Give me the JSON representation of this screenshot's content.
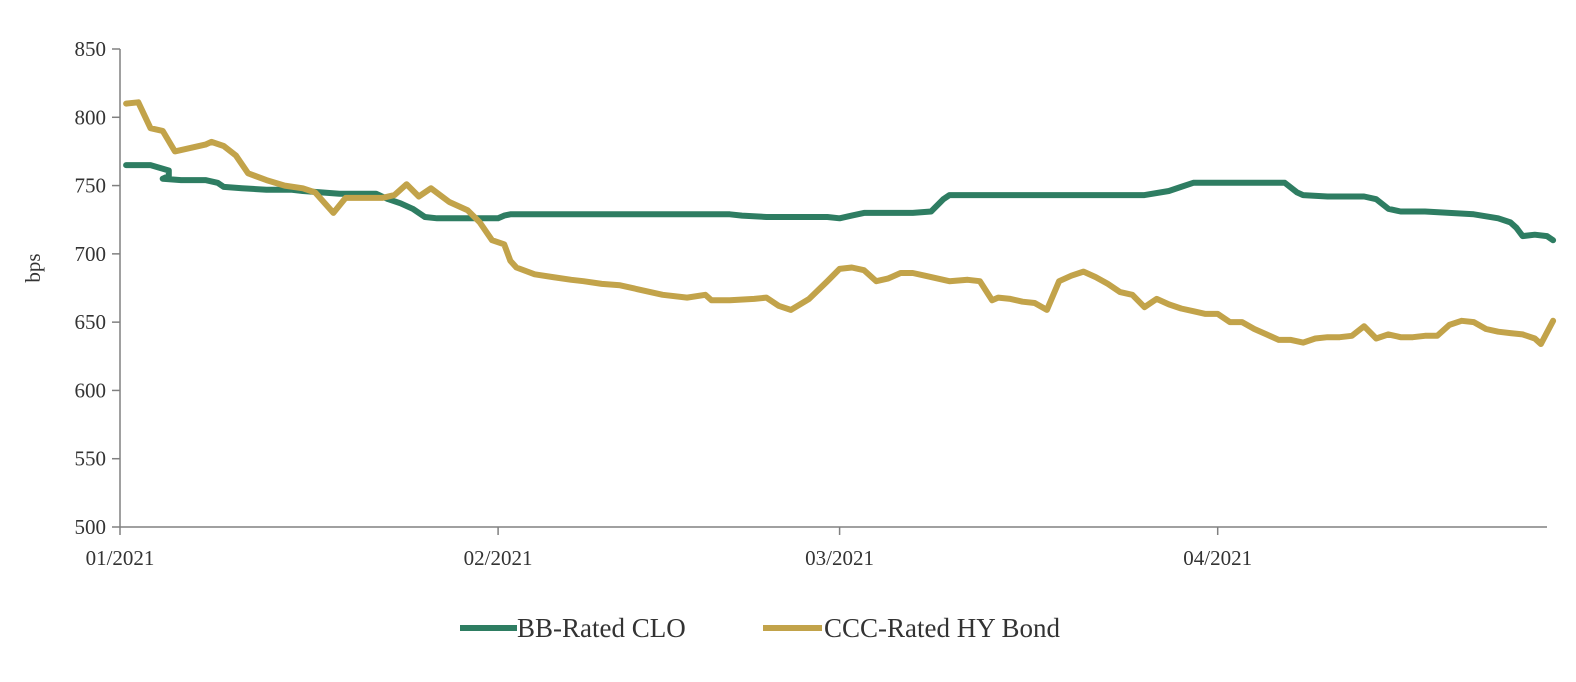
{
  "chart_data": {
    "type": "line",
    "xlabel": "",
    "ylabel": "bps",
    "ylim": [
      500,
      850
    ],
    "y_ticks": [
      "500",
      "550",
      "600",
      "650",
      "700",
      "750",
      "800",
      "850"
    ],
    "x_tick_labels": [
      "01/2021",
      "02/2021",
      "03/2021",
      "04/2021"
    ],
    "x_ticks_day": [
      0,
      31,
      59,
      90
    ],
    "x_range_day": [
      0,
      117
    ],
    "grid": false,
    "legend_position": "bottom-center",
    "series": [
      {
        "name": "BB-Rated CLO",
        "color": "#2E7D62",
        "points": [
          [
            0.5,
            765
          ],
          [
            2.5,
            765
          ],
          [
            4,
            761
          ],
          [
            4,
            757
          ],
          [
            3.5,
            755
          ],
          [
            5,
            754
          ],
          [
            7,
            754
          ],
          [
            8,
            752
          ],
          [
            8.5,
            749
          ],
          [
            10,
            748
          ],
          [
            12,
            747
          ],
          [
            14,
            747
          ],
          [
            15,
            746
          ],
          [
            16.5,
            745
          ],
          [
            18,
            744
          ],
          [
            19,
            744
          ],
          [
            21,
            744
          ],
          [
            22,
            740
          ],
          [
            23,
            737
          ],
          [
            24,
            733
          ],
          [
            25,
            727
          ],
          [
            26,
            726
          ],
          [
            28,
            726
          ],
          [
            30,
            726
          ],
          [
            31,
            726
          ],
          [
            31.5,
            728
          ],
          [
            32,
            729
          ],
          [
            36,
            729
          ],
          [
            40,
            729
          ],
          [
            44,
            729
          ],
          [
            46,
            729
          ],
          [
            48,
            729
          ],
          [
            50,
            729
          ],
          [
            51,
            728
          ],
          [
            53,
            727
          ],
          [
            55,
            727
          ],
          [
            57,
            727
          ],
          [
            58,
            727
          ],
          [
            59,
            726
          ],
          [
            60,
            728
          ],
          [
            61,
            730
          ],
          [
            65,
            730
          ],
          [
            66.5,
            731
          ],
          [
            67.5,
            740
          ],
          [
            68,
            743
          ],
          [
            72,
            743
          ],
          [
            75,
            743
          ],
          [
            78,
            743
          ],
          [
            80,
            743
          ],
          [
            82,
            743
          ],
          [
            84,
            743
          ],
          [
            86,
            746
          ],
          [
            87,
            749
          ],
          [
            88,
            752
          ],
          [
            90,
            752
          ],
          [
            92,
            752
          ],
          [
            94,
            752
          ],
          [
            95.5,
            752
          ],
          [
            96.5,
            745
          ],
          [
            97,
            743
          ],
          [
            99,
            742
          ],
          [
            101,
            742
          ],
          [
            102,
            742
          ],
          [
            103,
            740
          ],
          [
            104,
            733
          ],
          [
            105,
            731
          ],
          [
            107,
            731
          ],
          [
            109,
            730
          ],
          [
            111,
            729
          ],
          [
            113,
            726
          ],
          [
            114,
            723
          ],
          [
            114.5,
            719
          ],
          [
            115,
            713
          ],
          [
            116,
            714
          ],
          [
            117,
            713
          ],
          [
            117.5,
            710
          ]
        ]
      },
      {
        "name": "CCC-Rated HY Bond",
        "color": "#C2A34A",
        "points": [
          [
            0.5,
            810
          ],
          [
            1.5,
            811
          ],
          [
            2.5,
            792
          ],
          [
            3.5,
            790
          ],
          [
            4.5,
            775
          ],
          [
            6,
            778
          ],
          [
            7,
            780
          ],
          [
            7.5,
            782
          ],
          [
            8.5,
            779
          ],
          [
            9.5,
            772
          ],
          [
            10.5,
            759
          ],
          [
            12,
            754
          ],
          [
            13.5,
            750
          ],
          [
            15,
            748
          ],
          [
            16,
            745
          ],
          [
            17.5,
            730
          ],
          [
            18.5,
            741
          ],
          [
            20,
            741
          ],
          [
            21.5,
            741
          ],
          [
            22.5,
            743
          ],
          [
            23.5,
            751
          ],
          [
            24.5,
            742
          ],
          [
            25.5,
            748
          ],
          [
            27,
            738
          ],
          [
            28.5,
            732
          ],
          [
            29.5,
            723
          ],
          [
            30.5,
            710
          ],
          [
            31.5,
            707
          ],
          [
            32,
            695
          ],
          [
            32.5,
            690
          ],
          [
            34,
            685
          ],
          [
            35.5,
            683
          ],
          [
            37,
            681
          ],
          [
            38,
            680
          ],
          [
            39.5,
            678
          ],
          [
            41,
            677
          ],
          [
            42.5,
            674
          ],
          [
            44.5,
            670
          ],
          [
            46.5,
            668
          ],
          [
            48,
            670
          ],
          [
            48.5,
            666
          ],
          [
            50,
            666
          ],
          [
            52,
            667
          ],
          [
            53,
            668
          ],
          [
            54,
            662
          ],
          [
            55,
            659
          ],
          [
            56.5,
            667
          ],
          [
            58,
            680
          ],
          [
            59,
            689
          ],
          [
            60,
            690
          ],
          [
            61,
            688
          ],
          [
            62,
            680
          ],
          [
            63,
            682
          ],
          [
            64,
            686
          ],
          [
            65,
            686
          ],
          [
            66,
            684
          ],
          [
            67,
            682
          ],
          [
            68,
            680
          ],
          [
            69.5,
            681
          ],
          [
            70.5,
            680
          ],
          [
            71.5,
            666
          ],
          [
            72,
            668
          ],
          [
            73,
            667
          ],
          [
            74,
            665
          ],
          [
            75,
            664
          ],
          [
            76,
            659
          ],
          [
            77,
            680
          ],
          [
            78,
            684
          ],
          [
            79,
            687
          ],
          [
            80,
            683
          ],
          [
            81,
            678
          ],
          [
            82,
            672
          ],
          [
            83,
            670
          ],
          [
            84,
            661
          ],
          [
            85,
            667
          ],
          [
            86,
            663
          ],
          [
            87,
            660
          ],
          [
            88,
            658
          ],
          [
            89,
            656
          ],
          [
            90,
            656
          ],
          [
            91,
            650
          ],
          [
            92,
            650
          ],
          [
            93,
            645
          ],
          [
            94,
            641
          ],
          [
            95,
            637
          ],
          [
            96,
            637
          ],
          [
            97,
            635
          ],
          [
            98,
            638
          ],
          [
            99,
            639
          ],
          [
            100,
            639
          ],
          [
            101,
            640
          ],
          [
            102,
            647
          ],
          [
            103,
            638
          ],
          [
            104,
            641
          ],
          [
            105,
            639
          ],
          [
            106,
            639
          ],
          [
            107,
            640
          ],
          [
            108,
            640
          ],
          [
            109,
            648
          ],
          [
            110,
            651
          ],
          [
            111,
            650
          ],
          [
            112,
            645
          ],
          [
            113,
            643
          ],
          [
            114,
            642
          ],
          [
            115,
            641
          ],
          [
            116,
            638
          ],
          [
            116.5,
            634
          ],
          [
            117.5,
            651
          ]
        ]
      }
    ]
  }
}
